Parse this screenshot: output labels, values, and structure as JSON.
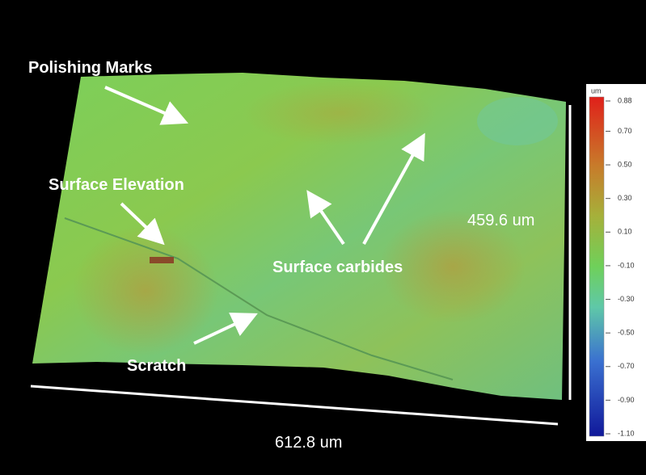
{
  "annotations": [
    "Polishing Marks",
    "Surface Elevation",
    "Surface carbides",
    "Scratch"
  ],
  "dimensions": {
    "width": "612.8 um",
    "height": "459.6 um"
  },
  "colorbar": {
    "unit": "um",
    "ticks": [
      0.88,
      {
        "value": 0.7,
        "label": "0.70"
      },
      {
        "value": 0.5,
        "label": "0.50"
      },
      {
        "value": 0.3,
        "label": "0.30"
      },
      {
        "value": 0.1,
        "label": "0.10"
      },
      {
        "value": -0.1,
        "label": "-0.10"
      },
      {
        "value": -0.3,
        "label": "-0.30"
      },
      {
        "value": -0.5,
        "label": "-0.50"
      },
      {
        "value": -0.7,
        "label": "-0.70"
      },
      {
        "value": -0.9,
        "label": "-0.90"
      },
      {
        "value": -1.1,
        "label": "-1.10"
      }
    ]
  }
}
